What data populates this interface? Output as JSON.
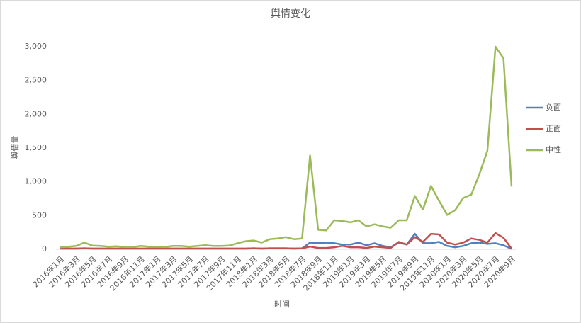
{
  "chart_data": {
    "type": "line",
    "title": "舆情变化",
    "xlabel": "时间",
    "ylabel": "舆情量",
    "categories": [
      "2016年1月",
      null,
      "2016年3月",
      null,
      "2016年5月",
      null,
      "2016年7月",
      null,
      "2016年9月",
      null,
      "2016年11月",
      null,
      "2017年1月",
      null,
      "2017年3月",
      null,
      "2017年5月",
      null,
      "2017年7月",
      null,
      "2017年9月",
      null,
      "2017年11月",
      null,
      "2018年1月",
      null,
      "2018年3月",
      null,
      "2018年5月",
      null,
      "2018年7月",
      null,
      "2018年9月",
      null,
      "2018年11月",
      null,
      "2019年1月",
      null,
      "2019年3月",
      null,
      "2019年5月",
      null,
      "2019年7月",
      null,
      "2019年9月",
      null,
      "2019年11月",
      null,
      "2020年1月",
      null,
      "2020年3月",
      null,
      "2020年5月",
      null,
      "2020年7月",
      null,
      "2020年9月"
    ],
    "series": [
      {
        "name": "负面",
        "color": "#4f81bd",
        "values": [
          10,
          10,
          10,
          15,
          10,
          10,
          10,
          10,
          10,
          10,
          10,
          10,
          10,
          10,
          10,
          10,
          10,
          10,
          10,
          10,
          10,
          10,
          10,
          10,
          15,
          10,
          15,
          15,
          15,
          10,
          15,
          100,
          90,
          100,
          90,
          70,
          70,
          100,
          60,
          90,
          50,
          30,
          100,
          70,
          230,
          90,
          90,
          110,
          50,
          30,
          50,
          90,
          100,
          80,
          90,
          60,
          5
        ]
      },
      {
        "name": "正面",
        "color": "#c0504d",
        "values": [
          10,
          10,
          10,
          15,
          10,
          10,
          10,
          10,
          10,
          10,
          10,
          10,
          10,
          10,
          10,
          10,
          10,
          10,
          10,
          10,
          10,
          10,
          10,
          10,
          15,
          10,
          15,
          15,
          15,
          10,
          15,
          40,
          20,
          20,
          30,
          50,
          30,
          30,
          20,
          40,
          30,
          20,
          110,
          70,
          180,
          110,
          230,
          220,
          100,
          70,
          100,
          160,
          140,
          100,
          240,
          170,
          10
        ]
      },
      {
        "name": "中性",
        "color": "#9bbb59",
        "values": [
          30,
          40,
          50,
          100,
          55,
          50,
          40,
          45,
          35,
          35,
          50,
          40,
          40,
          35,
          50,
          50,
          40,
          50,
          60,
          50,
          50,
          55,
          90,
          120,
          130,
          100,
          150,
          160,
          180,
          150,
          160,
          1390,
          290,
          280,
          430,
          420,
          400,
          430,
          340,
          370,
          340,
          320,
          430,
          430,
          790,
          590,
          940,
          720,
          510,
          580,
          760,
          810,
          1110,
          1460,
          3000,
          2830,
          930
        ]
      }
    ],
    "ylim": [
      0,
      3000
    ],
    "yticks": [
      0,
      500,
      {
        "value": 1000,
        "label": "1,000"
      },
      {
        "value": 1500,
        "label": "1,500"
      },
      {
        "value": 2000,
        "label": "2,000"
      },
      {
        "value": 2500,
        "label": "2,500"
      },
      {
        "value": 3000,
        "label": "3,000"
      }
    ],
    "legend": "right"
  }
}
